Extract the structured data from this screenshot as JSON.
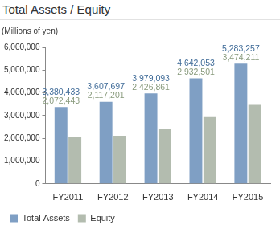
{
  "chart_data": {
    "type": "bar",
    "title": "Total Assets / Equity",
    "subtitle": "(Millions of yen)",
    "categories": [
      "FY2011",
      "FY2012",
      "FY2013",
      "FY2014",
      "FY2015"
    ],
    "series": [
      {
        "name": "Total Assets",
        "color": "#7f9fc4",
        "values": [
          3380433,
          3607697,
          3979093,
          4642053,
          5283257
        ],
        "value_labels": [
          "3,380,433",
          "3,607,697",
          "3,979,093",
          "4,642,053",
          "5,283,257"
        ]
      },
      {
        "name": "Equity",
        "color": "#b3bcaf",
        "values": [
          2072443,
          2117201,
          2426861,
          2932501,
          3474211
        ],
        "value_labels": [
          "2,072,443",
          "2,117,201",
          "2,426,861",
          "2,932,501",
          "3,474,211"
        ]
      }
    ],
    "ylim": [
      0,
      6000000
    ],
    "yticks": [
      {
        "value": 0,
        "label": "0"
      },
      {
        "value": 1000000,
        "label": "1,000,000"
      },
      {
        "value": 2000000,
        "label": "2,000,000"
      },
      {
        "value": 3000000,
        "label": "3,000,000"
      },
      {
        "value": 4000000,
        "label": "4,000,000"
      },
      {
        "value": 5000000,
        "label": "5,000,000"
      },
      {
        "value": 6000000,
        "label": "6,000,000"
      }
    ],
    "grid": false,
    "legend": "bottom-left",
    "data_labels": true
  }
}
